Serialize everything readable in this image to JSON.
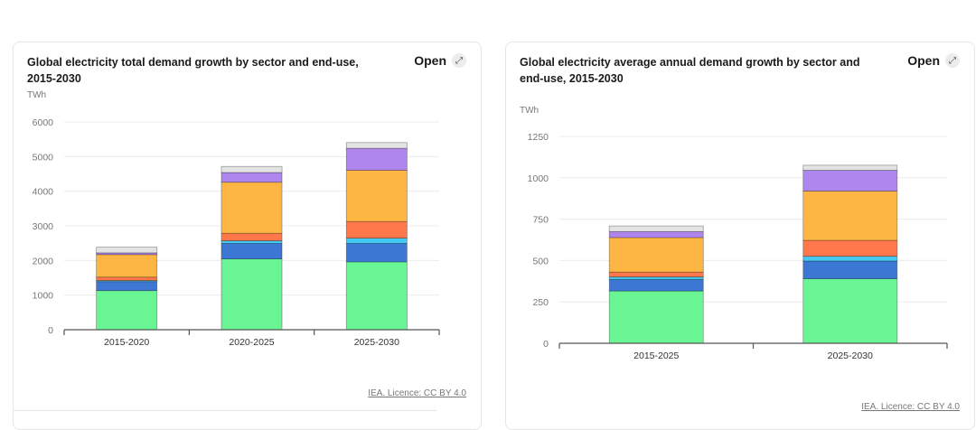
{
  "charts": [
    {
      "title": "Global electricity total demand growth by sector and end-use, 2015-2030",
      "open_label": "Open",
      "open_icon": "expand-arrow-icon",
      "credit": "IEA. Licence: CC BY 4.0",
      "chart_data": {
        "type": "bar",
        "stacked": true,
        "ylabel": "TWh",
        "ylim": [
          0,
          6000
        ],
        "yticks": [
          0,
          1000,
          2000,
          3000,
          4000,
          5000,
          6000
        ],
        "grid": true,
        "categories": [
          "2015-2020",
          "2020-2025",
          "2025-2030"
        ],
        "series": [
          {
            "color": "#69f593",
            "values": [
              1130,
              2045,
              1960
            ]
          },
          {
            "color": "#3c78d3",
            "values": [
              260,
              445,
              530
            ]
          },
          {
            "color": "#45c8f2",
            "values": [
              30,
              80,
              155
            ]
          },
          {
            "color": "#ff774a",
            "values": [
              100,
              215,
              480
            ]
          },
          {
            "color": "#fdb643",
            "values": [
              650,
              1475,
              1480
            ]
          },
          {
            "color": "#ae86ee",
            "values": [
              50,
              280,
              635
            ]
          },
          {
            "color": "#e3e3e3",
            "values": [
              165,
              175,
              165
            ]
          }
        ]
      }
    },
    {
      "title": "Global electricity average annual demand growth by sector and end-use, 2015-2030",
      "open_label": "Open",
      "open_icon": "expand-arrow-icon",
      "credit": "IEA. Licence: CC BY 4.0",
      "chart_data": {
        "type": "bar",
        "stacked": true,
        "ylabel": "TWh",
        "ylim": [
          0,
          1250
        ],
        "yticks": [
          0,
          250,
          500,
          750,
          1000,
          1250
        ],
        "grid": true,
        "categories": [
          "2015-2025",
          "2025-2030"
        ],
        "series": [
          {
            "color": "#69f593",
            "values": [
              316,
              390
            ]
          },
          {
            "color": "#3c78d3",
            "values": [
              70,
              107
            ]
          },
          {
            "color": "#45c8f2",
            "values": [
              15,
              29
            ]
          },
          {
            "color": "#ff774a",
            "values": [
              29,
              96
            ]
          },
          {
            "color": "#fdb643",
            "values": [
              209,
              298
            ]
          },
          {
            "color": "#ae86ee",
            "values": [
              36,
              125
            ]
          },
          {
            "color": "#e3e3e3",
            "values": [
              34,
              31
            ]
          }
        ]
      }
    }
  ]
}
